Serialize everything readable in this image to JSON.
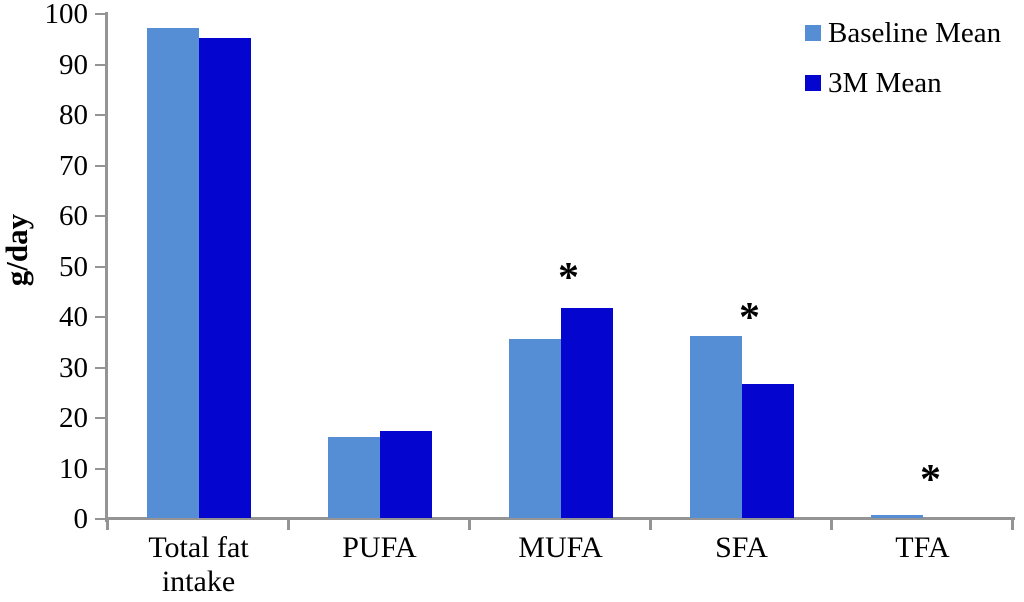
{
  "figure": {
    "background_color": "#FFFFFF",
    "axis_color": "#949494",
    "text_color": "#000000"
  },
  "chart_data": {
    "type": "bar",
    "title": "",
    "categories": [
      "Total fat intake",
      "PUFA",
      "MUFA",
      "SFA",
      "TFA"
    ],
    "series": [
      {
        "name": "Baseline Mean",
        "color": "#558ED5",
        "values": [
          97,
          16,
          35.5,
          36,
          0.5
        ]
      },
      {
        "name": "3M Mean",
        "color": "#0505D0",
        "values": [
          95,
          17.2,
          41.5,
          26.5,
          0
        ]
      }
    ],
    "annotations": [
      {
        "category": "MUFA",
        "text": "*",
        "y": 49
      },
      {
        "category": "SFA",
        "text": "*",
        "y": 41
      },
      {
        "category": "TFA",
        "text": "*",
        "y": 9
      }
    ],
    "xlabel": "",
    "ylabel": "g/day",
    "ylim": [
      0,
      100
    ],
    "ytick_step": 10,
    "ytick_labels": [
      "0",
      "10",
      "20",
      "30",
      "40",
      "50",
      "60",
      "70",
      "80",
      "90",
      "100"
    ],
    "grid": false,
    "legend_position": "top-right"
  },
  "legend": {
    "items": [
      {
        "label": "Baseline Mean",
        "color": "#558ED5"
      },
      {
        "label": "3M Mean",
        "color": "#0505D0"
      }
    ]
  }
}
